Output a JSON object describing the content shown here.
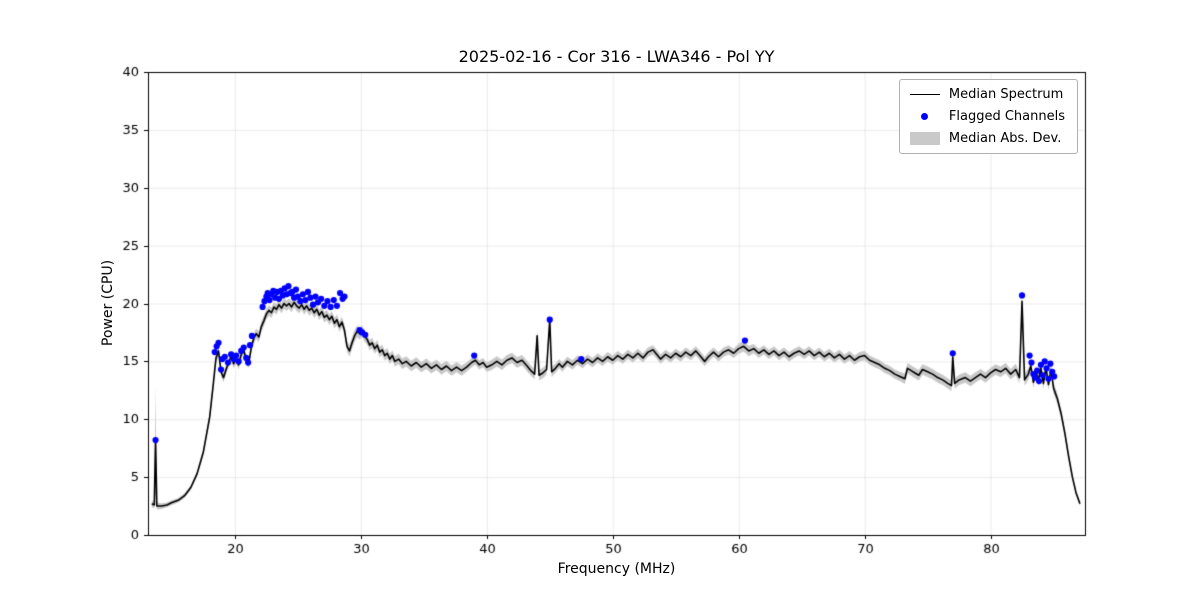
{
  "legend": {
    "items": [
      {
        "label": "Median Spectrum",
        "type": "line",
        "color": "#000000"
      },
      {
        "label": "Flagged Channels",
        "type": "dot",
        "color": "#0000ff"
      },
      {
        "label": "Median Abs. Dev.",
        "type": "patch",
        "color": "#c9c9c9"
      }
    ]
  },
  "chart_data": {
    "type": "line",
    "title": "2025-02-16 - Cor 316 - LWA346 - Pol YY",
    "xlabel": "Frequency (MHz)",
    "ylabel": "Power (CPU)",
    "xlim": [
      13.1,
      87.5
    ],
    "ylim": [
      0,
      40
    ],
    "xticks": [
      20,
      30,
      40,
      50,
      60,
      70,
      80
    ],
    "yticks": [
      0,
      5,
      10,
      15,
      20,
      25,
      30,
      35,
      40
    ],
    "grid": true,
    "line_color": "#000000",
    "flag_color": "#0000ff",
    "band_color": "#c9c9c9",
    "grid_color": "rgba(0,0,0,0.08)",
    "median_spectrum_points": [
      [
        13.4,
        2.7,
        0.3
      ],
      [
        13.6,
        2.6,
        0.3
      ],
      [
        13.7,
        8.3,
        4.6
      ],
      [
        13.8,
        2.5,
        0.3
      ],
      [
        14.2,
        2.5,
        0.25
      ],
      [
        14.6,
        2.6,
        0.2
      ],
      [
        15.0,
        2.8,
        0.2
      ],
      [
        15.5,
        3.0,
        0.2
      ],
      [
        16.0,
        3.4,
        0.2
      ],
      [
        16.5,
        4.1,
        0.2
      ],
      [
        17.0,
        5.3,
        0.25
      ],
      [
        17.5,
        7.2,
        0.3
      ],
      [
        18.0,
        10.2,
        0.35
      ],
      [
        18.3,
        13.2,
        0.4
      ],
      [
        18.5,
        15.3,
        0.45
      ],
      [
        18.7,
        15.9,
        0.45
      ],
      [
        18.9,
        14.1,
        0.4
      ],
      [
        19.1,
        13.6,
        0.4
      ],
      [
        19.3,
        14.3,
        0.4
      ],
      [
        19.5,
        14.9,
        0.4
      ],
      [
        19.7,
        15.4,
        0.4
      ],
      [
        19.9,
        14.8,
        0.4
      ],
      [
        20.1,
        15.2,
        0.4
      ],
      [
        20.3,
        14.7,
        0.4
      ],
      [
        20.5,
        15.6,
        0.4
      ],
      [
        20.7,
        16.0,
        0.4
      ],
      [
        20.9,
        15.1,
        0.4
      ],
      [
        21.1,
        14.8,
        0.4
      ],
      [
        21.3,
        16.2,
        0.45
      ],
      [
        21.5,
        17.0,
        0.45
      ],
      [
        21.7,
        17.4,
        0.45
      ],
      [
        21.9,
        17.1,
        0.45
      ],
      [
        22.1,
        18.0,
        0.45
      ],
      [
        22.3,
        18.5,
        0.45
      ],
      [
        22.5,
        19.1,
        0.45
      ],
      [
        22.7,
        19.4,
        0.45
      ],
      [
        22.9,
        19.2,
        0.45
      ],
      [
        23.1,
        19.7,
        0.45
      ],
      [
        23.3,
        19.5,
        0.45
      ],
      [
        23.5,
        19.9,
        0.45
      ],
      [
        23.7,
        19.6,
        0.45
      ],
      [
        23.9,
        20.0,
        0.45
      ],
      [
        24.1,
        19.8,
        0.45
      ],
      [
        24.3,
        20.0,
        0.45
      ],
      [
        24.5,
        19.7,
        0.45
      ],
      [
        24.7,
        20.1,
        0.45
      ],
      [
        24.9,
        19.8,
        0.45
      ],
      [
        25.1,
        19.6,
        0.45
      ],
      [
        25.3,
        19.9,
        0.45
      ],
      [
        25.5,
        19.5,
        0.45
      ],
      [
        25.7,
        19.8,
        0.45
      ],
      [
        25.9,
        19.4,
        0.45
      ],
      [
        26.1,
        19.6,
        0.45
      ],
      [
        26.3,
        19.2,
        0.45
      ],
      [
        26.5,
        19.5,
        0.45
      ],
      [
        26.7,
        19.0,
        0.45
      ],
      [
        26.9,
        19.3,
        0.45
      ],
      [
        27.1,
        18.8,
        0.45
      ],
      [
        27.3,
        19.0,
        0.45
      ],
      [
        27.5,
        18.6,
        0.45
      ],
      [
        27.7,
        18.9,
        0.45
      ],
      [
        27.9,
        18.3,
        0.45
      ],
      [
        28.1,
        18.6,
        0.45
      ],
      [
        28.3,
        18.0,
        0.45
      ],
      [
        28.5,
        18.4,
        0.45
      ],
      [
        28.7,
        17.7,
        0.45
      ],
      [
        28.9,
        16.3,
        0.45
      ],
      [
        29.1,
        15.9,
        0.5
      ],
      [
        29.3,
        16.6,
        0.5
      ],
      [
        29.5,
        17.2,
        0.5
      ],
      [
        29.7,
        17.6,
        0.5
      ],
      [
        29.9,
        17.4,
        0.5
      ],
      [
        30.1,
        17.6,
        0.5
      ],
      [
        30.3,
        17.2,
        0.5
      ],
      [
        30.5,
        16.9,
        0.45
      ],
      [
        30.7,
        16.4,
        0.45
      ],
      [
        30.9,
        16.6,
        0.45
      ],
      [
        31.1,
        16.1,
        0.45
      ],
      [
        31.3,
        16.4,
        0.45
      ],
      [
        31.5,
        15.8,
        0.45
      ],
      [
        31.7,
        16.0,
        0.45
      ],
      [
        31.9,
        15.5,
        0.45
      ],
      [
        32.1,
        15.7,
        0.45
      ],
      [
        32.3,
        15.2,
        0.45
      ],
      [
        32.5,
        15.5,
        0.45
      ],
      [
        32.7,
        15.0,
        0.45
      ],
      [
        33.0,
        15.2,
        0.45
      ],
      [
        33.3,
        14.8,
        0.45
      ],
      [
        33.6,
        15.0,
        0.45
      ],
      [
        34.0,
        14.6,
        0.45
      ],
      [
        34.4,
        14.9,
        0.45
      ],
      [
        34.8,
        14.5,
        0.45
      ],
      [
        35.2,
        14.8,
        0.45
      ],
      [
        35.6,
        14.4,
        0.45
      ],
      [
        36.0,
        14.7,
        0.45
      ],
      [
        36.4,
        14.3,
        0.45
      ],
      [
        36.8,
        14.6,
        0.45
      ],
      [
        37.2,
        14.2,
        0.45
      ],
      [
        37.6,
        14.5,
        0.45
      ],
      [
        38.0,
        14.2,
        0.45
      ],
      [
        38.4,
        14.5,
        0.4
      ],
      [
        38.8,
        14.9,
        0.4
      ],
      [
        39.1,
        15.1,
        0.4
      ],
      [
        39.4,
        14.7,
        0.4
      ],
      [
        39.7,
        14.9,
        0.4
      ],
      [
        40.0,
        14.5,
        0.4
      ],
      [
        40.4,
        14.7,
        0.45
      ],
      [
        40.8,
        15.0,
        0.45
      ],
      [
        41.2,
        14.7,
        0.45
      ],
      [
        41.6,
        15.1,
        0.45
      ],
      [
        42.0,
        15.3,
        0.45
      ],
      [
        42.4,
        14.9,
        0.45
      ],
      [
        42.8,
        15.1,
        0.45
      ],
      [
        43.2,
        14.6,
        0.45
      ],
      [
        43.5,
        14.2,
        0.45
      ],
      [
        43.8,
        13.9,
        0.45
      ],
      [
        44.0,
        17.2,
        0.5
      ],
      [
        44.15,
        13.8,
        0.45
      ],
      [
        44.45,
        14.0,
        0.45
      ],
      [
        44.75,
        14.3,
        0.45
      ],
      [
        45.0,
        18.6,
        0.5
      ],
      [
        45.15,
        14.1,
        0.45
      ],
      [
        45.45,
        14.4,
        0.4
      ],
      [
        45.75,
        14.8,
        0.4
      ],
      [
        46.0,
        14.5,
        0.4
      ],
      [
        46.4,
        15.0,
        0.4
      ],
      [
        46.8,
        14.7,
        0.4
      ],
      [
        47.2,
        15.1,
        0.4
      ],
      [
        47.6,
        14.8,
        0.4
      ],
      [
        48.0,
        15.2,
        0.4
      ],
      [
        48.4,
        14.9,
        0.4
      ],
      [
        48.8,
        15.3,
        0.4
      ],
      [
        49.2,
        15.0,
        0.4
      ],
      [
        49.6,
        15.4,
        0.4
      ],
      [
        50.0,
        15.1,
        0.4
      ],
      [
        50.4,
        15.5,
        0.4
      ],
      [
        50.8,
        15.2,
        0.4
      ],
      [
        51.2,
        15.6,
        0.4
      ],
      [
        51.6,
        15.3,
        0.4
      ],
      [
        52.0,
        15.7,
        0.4
      ],
      [
        52.4,
        15.3,
        0.4
      ],
      [
        52.8,
        15.8,
        0.4
      ],
      [
        53.2,
        16.0,
        0.4
      ],
      [
        53.5,
        15.6,
        0.4
      ],
      [
        53.8,
        15.2,
        0.4
      ],
      [
        54.2,
        15.6,
        0.4
      ],
      [
        54.6,
        15.3,
        0.4
      ],
      [
        55.0,
        15.7,
        0.4
      ],
      [
        55.4,
        15.4,
        0.4
      ],
      [
        55.8,
        15.8,
        0.4
      ],
      [
        56.2,
        15.5,
        0.4
      ],
      [
        56.6,
        15.9,
        0.4
      ],
      [
        57.0,
        15.4,
        0.4
      ],
      [
        57.3,
        15.0,
        0.4
      ],
      [
        57.6,
        15.4,
        0.4
      ],
      [
        58.0,
        15.8,
        0.4
      ],
      [
        58.4,
        15.4,
        0.4
      ],
      [
        58.8,
        15.8,
        0.4
      ],
      [
        59.2,
        16.0,
        0.4
      ],
      [
        59.6,
        15.7,
        0.4
      ],
      [
        60.0,
        16.1,
        0.45
      ],
      [
        60.4,
        16.3,
        0.45
      ],
      [
        60.8,
        15.9,
        0.45
      ],
      [
        61.2,
        16.1,
        0.4
      ],
      [
        61.6,
        15.7,
        0.4
      ],
      [
        62.0,
        16.0,
        0.4
      ],
      [
        62.4,
        15.6,
        0.4
      ],
      [
        62.8,
        15.9,
        0.4
      ],
      [
        63.2,
        15.5,
        0.4
      ],
      [
        63.6,
        15.8,
        0.4
      ],
      [
        64.0,
        15.4,
        0.4
      ],
      [
        64.4,
        15.7,
        0.4
      ],
      [
        64.8,
        15.9,
        0.4
      ],
      [
        65.2,
        15.6,
        0.4
      ],
      [
        65.6,
        15.9,
        0.4
      ],
      [
        66.0,
        15.5,
        0.4
      ],
      [
        66.4,
        15.8,
        0.4
      ],
      [
        66.8,
        15.4,
        0.4
      ],
      [
        67.2,
        15.7,
        0.4
      ],
      [
        67.6,
        15.3,
        0.4
      ],
      [
        68.0,
        15.6,
        0.4
      ],
      [
        68.4,
        15.2,
        0.4
      ],
      [
        68.8,
        15.5,
        0.4
      ],
      [
        69.2,
        15.1,
        0.4
      ],
      [
        69.6,
        15.4,
        0.4
      ],
      [
        70.0,
        15.5,
        0.4
      ],
      [
        70.4,
        15.1,
        0.4
      ],
      [
        70.8,
        14.9,
        0.4
      ],
      [
        71.2,
        14.7,
        0.4
      ],
      [
        71.6,
        14.4,
        0.4
      ],
      [
        72.0,
        14.2,
        0.4
      ],
      [
        72.4,
        13.9,
        0.4
      ],
      [
        72.8,
        13.7,
        0.4
      ],
      [
        73.2,
        13.5,
        0.45
      ],
      [
        73.4,
        14.4,
        0.45
      ],
      [
        73.7,
        14.2,
        0.45
      ],
      [
        74.0,
        14.0,
        0.45
      ],
      [
        74.3,
        13.8,
        0.45
      ],
      [
        74.6,
        14.3,
        0.45
      ],
      [
        75.0,
        14.1,
        0.45
      ],
      [
        75.4,
        13.9,
        0.45
      ],
      [
        75.8,
        13.6,
        0.45
      ],
      [
        76.2,
        13.4,
        0.45
      ],
      [
        76.6,
        13.1,
        0.45
      ],
      [
        76.9,
        12.9,
        0.45
      ],
      [
        77.0,
        15.4,
        0.5
      ],
      [
        77.15,
        13.1,
        0.45
      ],
      [
        77.5,
        13.4,
        0.45
      ],
      [
        78.0,
        13.6,
        0.45
      ],
      [
        78.4,
        13.3,
        0.45
      ],
      [
        78.8,
        13.6,
        0.45
      ],
      [
        79.2,
        13.9,
        0.45
      ],
      [
        79.6,
        13.6,
        0.45
      ],
      [
        80.0,
        14.0,
        0.45
      ],
      [
        80.4,
        14.3,
        0.45
      ],
      [
        80.8,
        14.1,
        0.45
      ],
      [
        81.2,
        14.4,
        0.45
      ],
      [
        81.6,
        13.9,
        0.45
      ],
      [
        82.0,
        14.3,
        0.5
      ],
      [
        82.3,
        13.6,
        0.5
      ],
      [
        82.5,
        20.2,
        0.6
      ],
      [
        82.7,
        13.4,
        0.5
      ],
      [
        83.0,
        13.9,
        0.5
      ],
      [
        83.2,
        14.6,
        0.5
      ],
      [
        83.4,
        13.2,
        0.5
      ],
      [
        83.6,
        14.1,
        0.5
      ],
      [
        83.8,
        13.4,
        0.5
      ],
      [
        84.0,
        14.4,
        0.5
      ],
      [
        84.2,
        13.1,
        0.5
      ],
      [
        84.4,
        14.5,
        0.5
      ],
      [
        84.6,
        13.0,
        0.5
      ],
      [
        84.8,
        14.3,
        0.5
      ],
      [
        85.0,
        12.7,
        0.5
      ],
      [
        85.3,
        11.8,
        0.45
      ],
      [
        85.6,
        10.5,
        0.4
      ],
      [
        85.9,
        8.8,
        0.35
      ],
      [
        86.2,
        6.8,
        0.3
      ],
      [
        86.5,
        5.0,
        0.25
      ],
      [
        86.8,
        3.6,
        0.2
      ],
      [
        87.1,
        2.7,
        0.2
      ]
    ],
    "flagged_channels": [
      [
        13.7,
        8.2
      ],
      [
        18.4,
        15.8
      ],
      [
        18.55,
        16.3
      ],
      [
        18.7,
        16.6
      ],
      [
        18.9,
        14.3
      ],
      [
        19.0,
        15.2
      ],
      [
        19.2,
        15.4
      ],
      [
        19.45,
        14.9
      ],
      [
        19.7,
        15.6
      ],
      [
        19.9,
        15.2
      ],
      [
        20.1,
        15.5
      ],
      [
        20.3,
        15.0
      ],
      [
        20.5,
        15.9
      ],
      [
        20.7,
        16.2
      ],
      [
        20.9,
        15.3
      ],
      [
        21.05,
        14.9
      ],
      [
        21.2,
        16.4
      ],
      [
        21.35,
        17.2
      ],
      [
        22.2,
        19.7
      ],
      [
        22.35,
        20.2
      ],
      [
        22.5,
        20.6
      ],
      [
        22.6,
        20.9
      ],
      [
        22.75,
        20.3
      ],
      [
        22.9,
        20.8
      ],
      [
        23.05,
        21.1
      ],
      [
        23.2,
        20.5
      ],
      [
        23.35,
        21.0
      ],
      [
        23.5,
        20.4
      ],
      [
        23.65,
        21.1
      ],
      [
        23.8,
        20.7
      ],
      [
        23.95,
        21.3
      ],
      [
        24.1,
        20.8
      ],
      [
        24.25,
        21.5
      ],
      [
        24.4,
        20.9
      ],
      [
        24.55,
        21.0
      ],
      [
        24.7,
        20.5
      ],
      [
        24.85,
        21.2
      ],
      [
        25.0,
        20.6
      ],
      [
        25.2,
        20.2
      ],
      [
        25.4,
        20.8
      ],
      [
        25.6,
        20.3
      ],
      [
        25.8,
        21.0
      ],
      [
        26.0,
        20.5
      ],
      [
        26.2,
        19.9
      ],
      [
        26.4,
        20.6
      ],
      [
        26.6,
        20.1
      ],
      [
        26.85,
        20.4
      ],
      [
        27.1,
        19.8
      ],
      [
        27.35,
        20.2
      ],
      [
        27.6,
        19.7
      ],
      [
        27.85,
        20.3
      ],
      [
        28.1,
        19.8
      ],
      [
        28.35,
        20.9
      ],
      [
        28.55,
        20.4
      ],
      [
        28.7,
        20.6
      ],
      [
        29.9,
        17.7
      ],
      [
        30.1,
        17.5
      ],
      [
        30.35,
        17.3
      ],
      [
        39.0,
        15.5
      ],
      [
        45.0,
        18.6
      ],
      [
        47.5,
        15.2
      ],
      [
        60.5,
        16.8
      ],
      [
        77.0,
        15.7
      ],
      [
        82.5,
        20.7
      ],
      [
        83.1,
        15.5
      ],
      [
        83.25,
        14.9
      ],
      [
        83.4,
        13.9
      ],
      [
        83.55,
        13.6
      ],
      [
        83.7,
        14.2
      ],
      [
        83.85,
        13.3
      ],
      [
        84.0,
        14.7
      ],
      [
        84.15,
        13.8
      ],
      [
        84.3,
        15.0
      ],
      [
        84.45,
        14.4
      ],
      [
        84.6,
        13.5
      ],
      [
        84.75,
        14.8
      ],
      [
        84.9,
        14.1
      ],
      [
        85.05,
        13.7
      ]
    ]
  }
}
